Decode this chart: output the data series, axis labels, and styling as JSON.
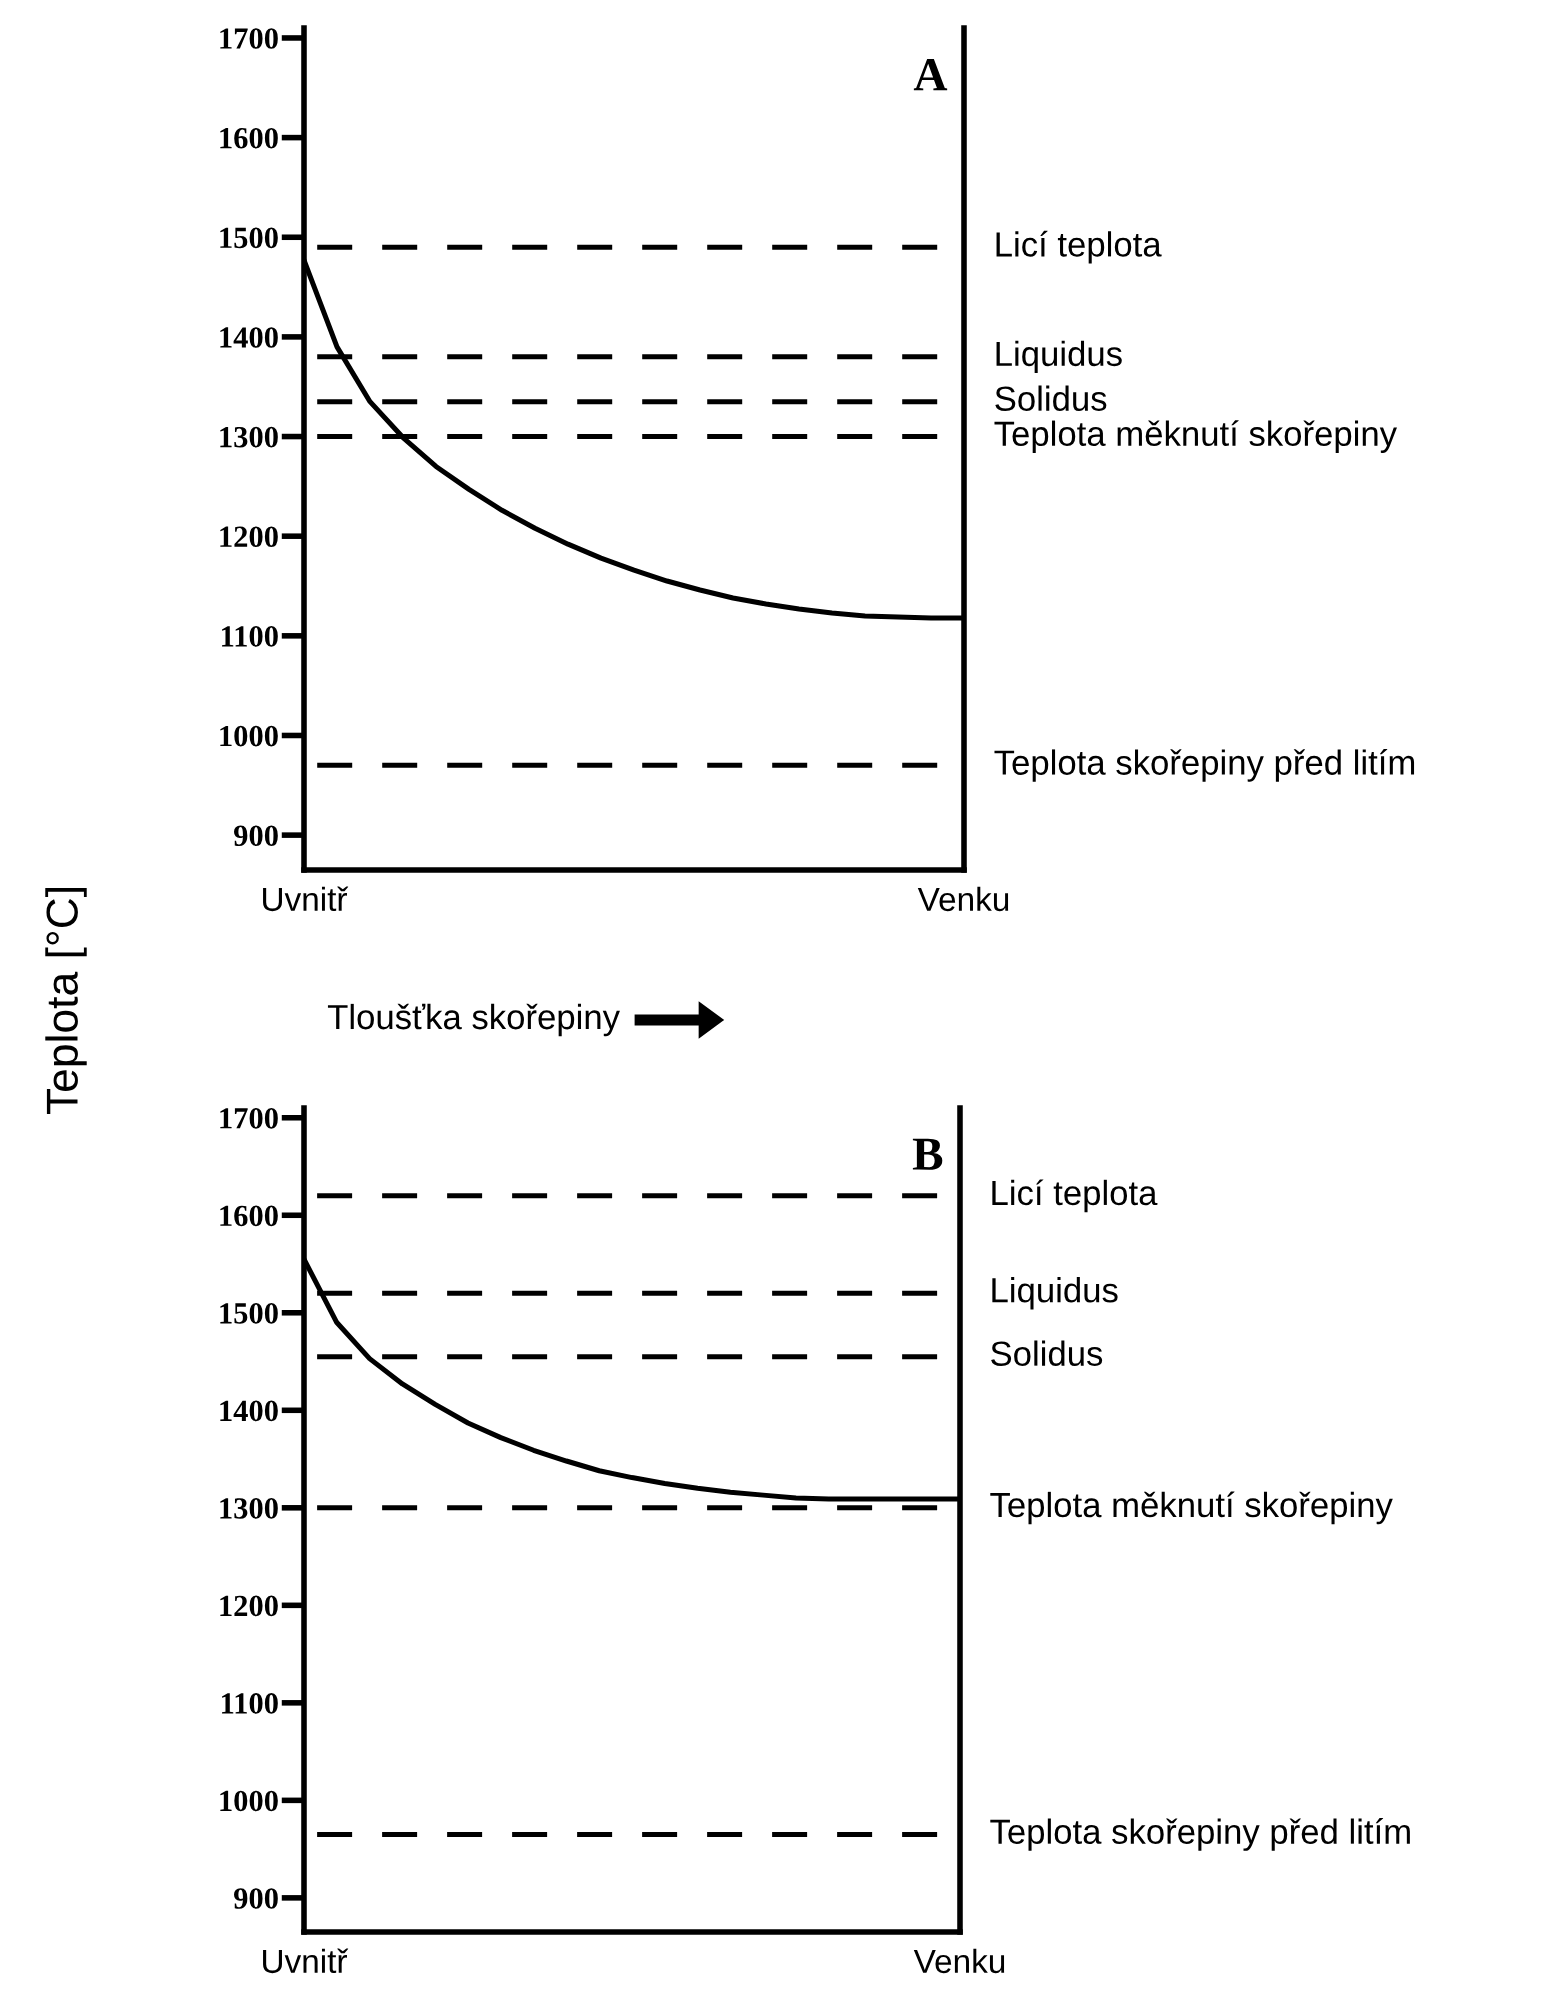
{
  "chart_data": [
    {
      "type": "line",
      "title": "A",
      "ylabel": "Teplota [°C]",
      "xlabel": "Tloušťka skořepiny",
      "categories": [
        "Uvnitř",
        null,
        null,
        null,
        null,
        null,
        null,
        null,
        null,
        null,
        null,
        null,
        null,
        null,
        null,
        null,
        null,
        null,
        null,
        null,
        "Venku"
      ],
      "ylim": [
        865,
        1710
      ],
      "yticks": [
        900,
        1000,
        1100,
        1200,
        1300,
        1400,
        1500,
        1600,
        1700
      ],
      "grid": false,
      "marker": "none",
      "line_style": "solid",
      "series": [
        {
          "color": "#000000",
          "values": [
            1477,
            1390,
            1335,
            1299,
            1270,
            1247,
            1226,
            1208,
            1192,
            1178,
            1166,
            1155,
            1146,
            1138,
            1132,
            1127,
            1123,
            1120,
            1119,
            1118,
            1118
          ]
        }
      ],
      "ref_lines": [
        {
          "axis": "y",
          "value": 1490,
          "label": "Licí teplota",
          "color": "#000000",
          "line_style": "dashed"
        },
        {
          "axis": "y",
          "value": 1380,
          "label": "Liquidus",
          "color": "#000000",
          "line_style": "dashed"
        },
        {
          "axis": "y",
          "value": 1335,
          "label": "Solidus",
          "color": "#000000",
          "line_style": "dashed"
        },
        {
          "axis": "y",
          "value": 1300,
          "label": "Teplota měknutí skořepiny",
          "color": "#000000",
          "line_style": "dashed"
        },
        {
          "axis": "y",
          "value": 970,
          "label": "Teplota skořepiny před litím",
          "color": "#000000",
          "line_style": "dashed"
        }
      ]
    },
    {
      "type": "line",
      "title": "B",
      "categories": [
        "Uvnitř",
        null,
        null,
        null,
        null,
        null,
        null,
        null,
        null,
        null,
        null,
        null,
        null,
        null,
        null,
        null,
        null,
        null,
        null,
        null,
        "Venku"
      ],
      "ylim": [
        865,
        1710
      ],
      "yticks": [
        900,
        1000,
        1100,
        1200,
        1300,
        1400,
        1500,
        1600,
        1700
      ],
      "grid": false,
      "marker": "none",
      "line_style": "solid",
      "series": [
        {
          "color": "#000000",
          "values": [
            1555,
            1490,
            1453,
            1427,
            1406,
            1387,
            1372,
            1359,
            1348,
            1338,
            1331,
            1325,
            1320,
            1316,
            1313,
            1310,
            1309,
            1309,
            1309,
            1309,
            1309
          ]
        }
      ],
      "ref_lines": [
        {
          "axis": "y",
          "value": 1620,
          "label": "Licí teplota",
          "color": "#000000",
          "line_style": "dashed"
        },
        {
          "axis": "y",
          "value": 1520,
          "label": "Liquidus",
          "color": "#000000",
          "line_style": "dashed"
        },
        {
          "axis": "y",
          "value": 1455,
          "label": "Solidus",
          "color": "#000000",
          "line_style": "dashed"
        },
        {
          "axis": "y",
          "value": 1300,
          "label": "Teplota měknutí skořepiny",
          "color": "#000000",
          "line_style": "dashed"
        },
        {
          "axis": "y",
          "value": 965,
          "label": "Teplota skořepiny před litím",
          "color": "#000000",
          "line_style": "dashed"
        }
      ]
    }
  ]
}
